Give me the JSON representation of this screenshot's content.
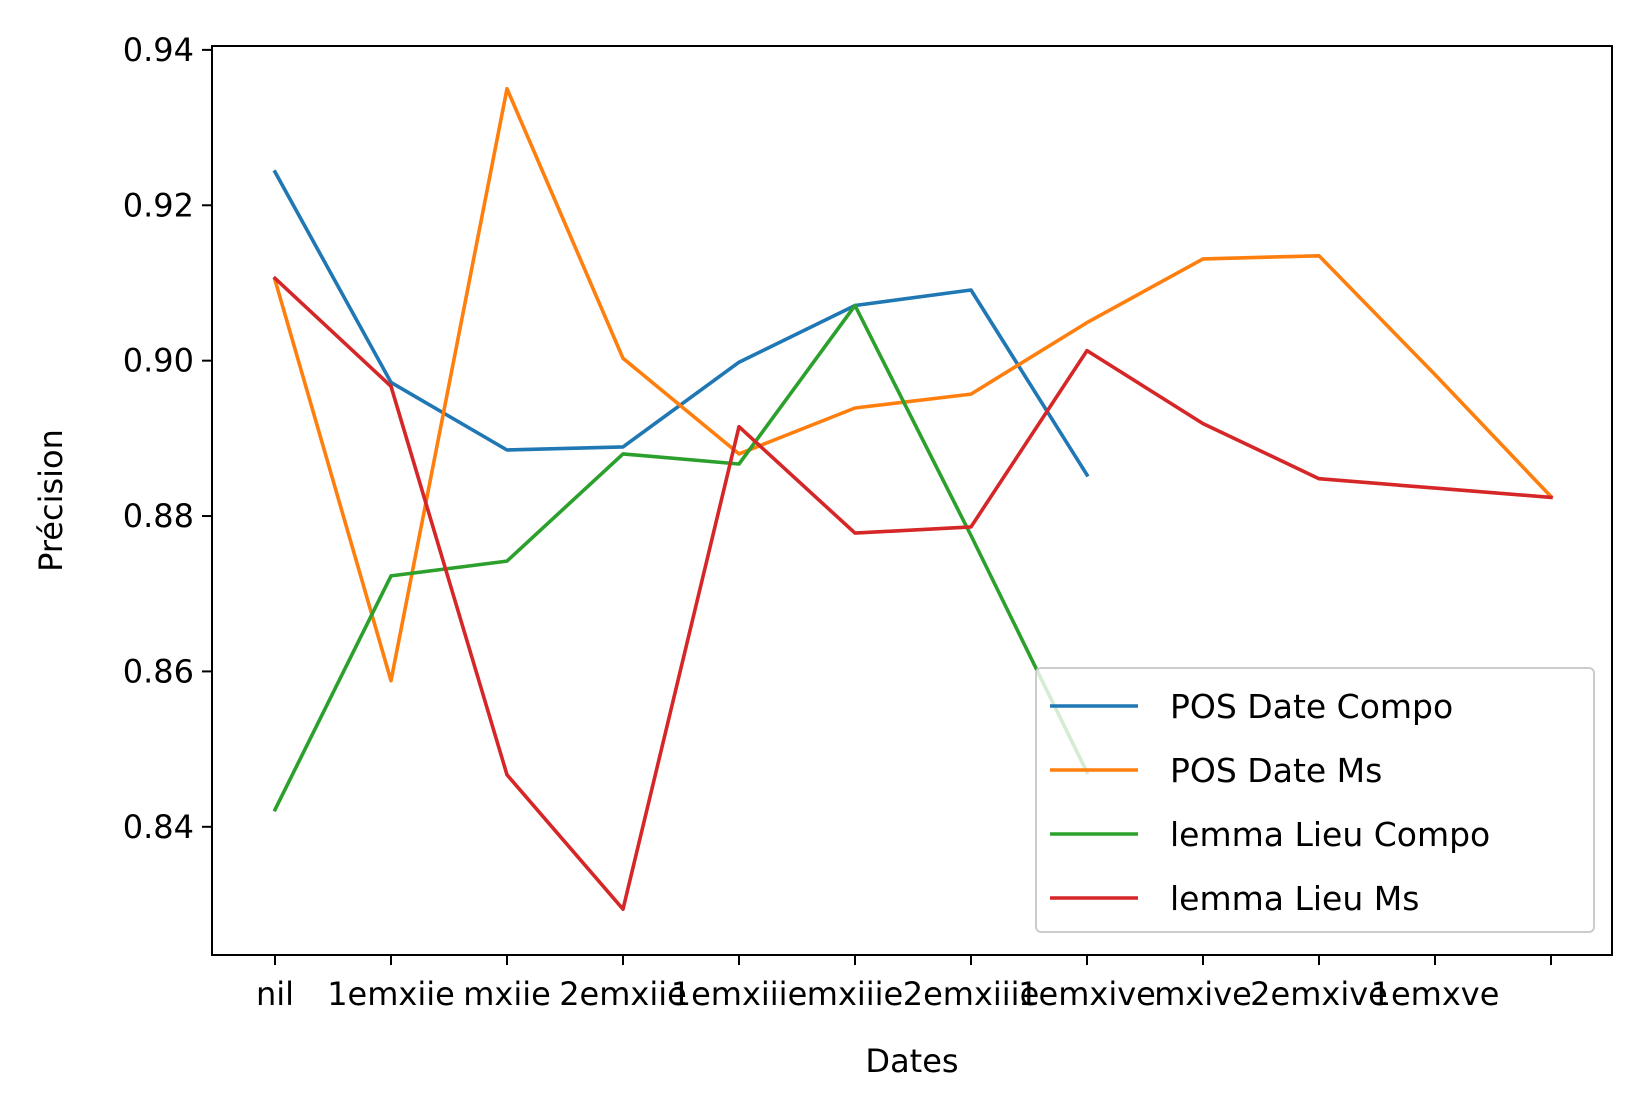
{
  "chart_data": {
    "type": "line",
    "xlabel": "Dates",
    "ylabel": "Précision",
    "categories": [
      "nil",
      "1emxiie",
      "mxiie",
      "2emxiie",
      "1emxiiie",
      "mxiiie",
      "2emxiiie",
      "1emxive",
      "mxive",
      "2emxive",
      "1emxve",
      ""
    ],
    "ylim": [
      0.8235,
      0.9405
    ],
    "yticks": [
      "0.84",
      "0.86",
      "0.88",
      "0.90",
      "0.92",
      "0.94"
    ],
    "grid": false,
    "legend_position": "lower-right",
    "series": [
      {
        "name": "POS Date Compo",
        "color": "#1f77b4",
        "values": [
          0.9243,
          0.8972,
          0.8885,
          0.8889,
          0.8998,
          0.9071,
          0.9091,
          0.8853,
          null,
          null,
          null,
          null
        ]
      },
      {
        "name": "POS Date Ms",
        "color": "#ff7f0e",
        "values": [
          0.9104,
          0.8588,
          0.935,
          0.9003,
          0.888,
          0.8939,
          0.8957,
          0.9049,
          0.9131,
          0.9135,
          0.8982,
          0.8825
        ]
      },
      {
        "name": "lemma Lieu Compo",
        "color": "#2ca02c",
        "values": [
          0.8422,
          0.8723,
          0.8742,
          0.888,
          0.8867,
          0.9071,
          0.8775,
          0.847,
          null,
          null,
          null,
          null
        ]
      },
      {
        "name": "lemma Lieu Ms",
        "color": "#d62728",
        "values": [
          0.9106,
          0.8967,
          0.8467,
          0.8294,
          0.8915,
          0.8778,
          0.8786,
          0.9013,
          0.8919,
          0.8848,
          0.8836,
          0.8824
        ]
      }
    ]
  }
}
